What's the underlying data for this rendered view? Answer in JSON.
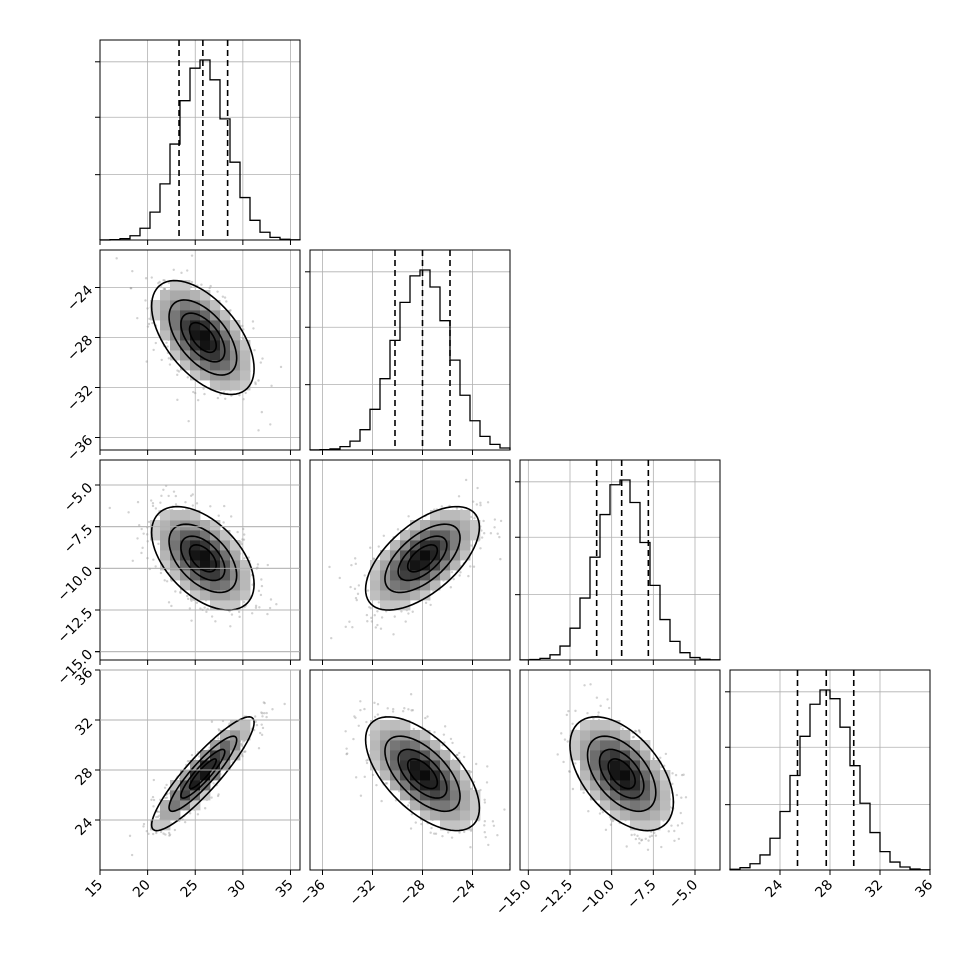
{
  "chart_data": {
    "type": "corner",
    "title": "",
    "parameters": [
      {
        "name": "",
        "mean": 25.8,
        "std": 2.6,
        "range": [
          15,
          36
        ],
        "quantiles": [
          23.3,
          25.8,
          28.4
        ],
        "ticks": [
          "15",
          "20",
          "25",
          "30",
          "35"
        ],
        "tick_values": [
          15,
          20,
          25,
          30,
          35
        ]
      },
      {
        "name": "",
        "mean": -28.0,
        "std": 2.2,
        "range": [
          -37,
          -21
        ],
        "quantiles": [
          -30.2,
          -28.0,
          -25.8
        ],
        "ticks": [
          "−36",
          "−32",
          "−28",
          "−24"
        ],
        "tick_values": [
          -36,
          -32,
          -28,
          -24
        ]
      },
      {
        "name": "",
        "mean": -9.4,
        "std": 1.5,
        "range": [
          -15.5,
          -3.5
        ],
        "quantiles": [
          -10.9,
          -9.4,
          -7.8
        ],
        "ticks": [
          "−15.0",
          "−12.5",
          "−10.0",
          "−7.5",
          "−5.0"
        ],
        "tick_values": [
          -15.0,
          -12.5,
          -10.0,
          -7.5,
          -5.0
        ]
      },
      {
        "name": "",
        "mean": 27.7,
        "std": 2.2,
        "range": [
          20,
          36
        ],
        "quantiles": [
          25.4,
          27.7,
          29.9
        ],
        "ticks": [
          "24",
          "28",
          "32",
          "36"
        ],
        "tick_values": [
          24,
          28,
          32,
          36
        ]
      }
    ],
    "correlations": [
      [
        1.0,
        -0.55,
        -0.5,
        0.9
      ],
      [
        -0.55,
        1.0,
        0.6,
        -0.6
      ],
      [
        -0.5,
        0.6,
        1.0,
        -0.5
      ],
      [
        0.9,
        -0.6,
        -0.5,
        1.0
      ]
    ],
    "histogram_bins": 20,
    "scatter_points_per_panel": 700,
    "contour_levels_sigma": [
      0.5,
      1.0,
      1.5,
      2.0
    ],
    "grid": true
  }
}
